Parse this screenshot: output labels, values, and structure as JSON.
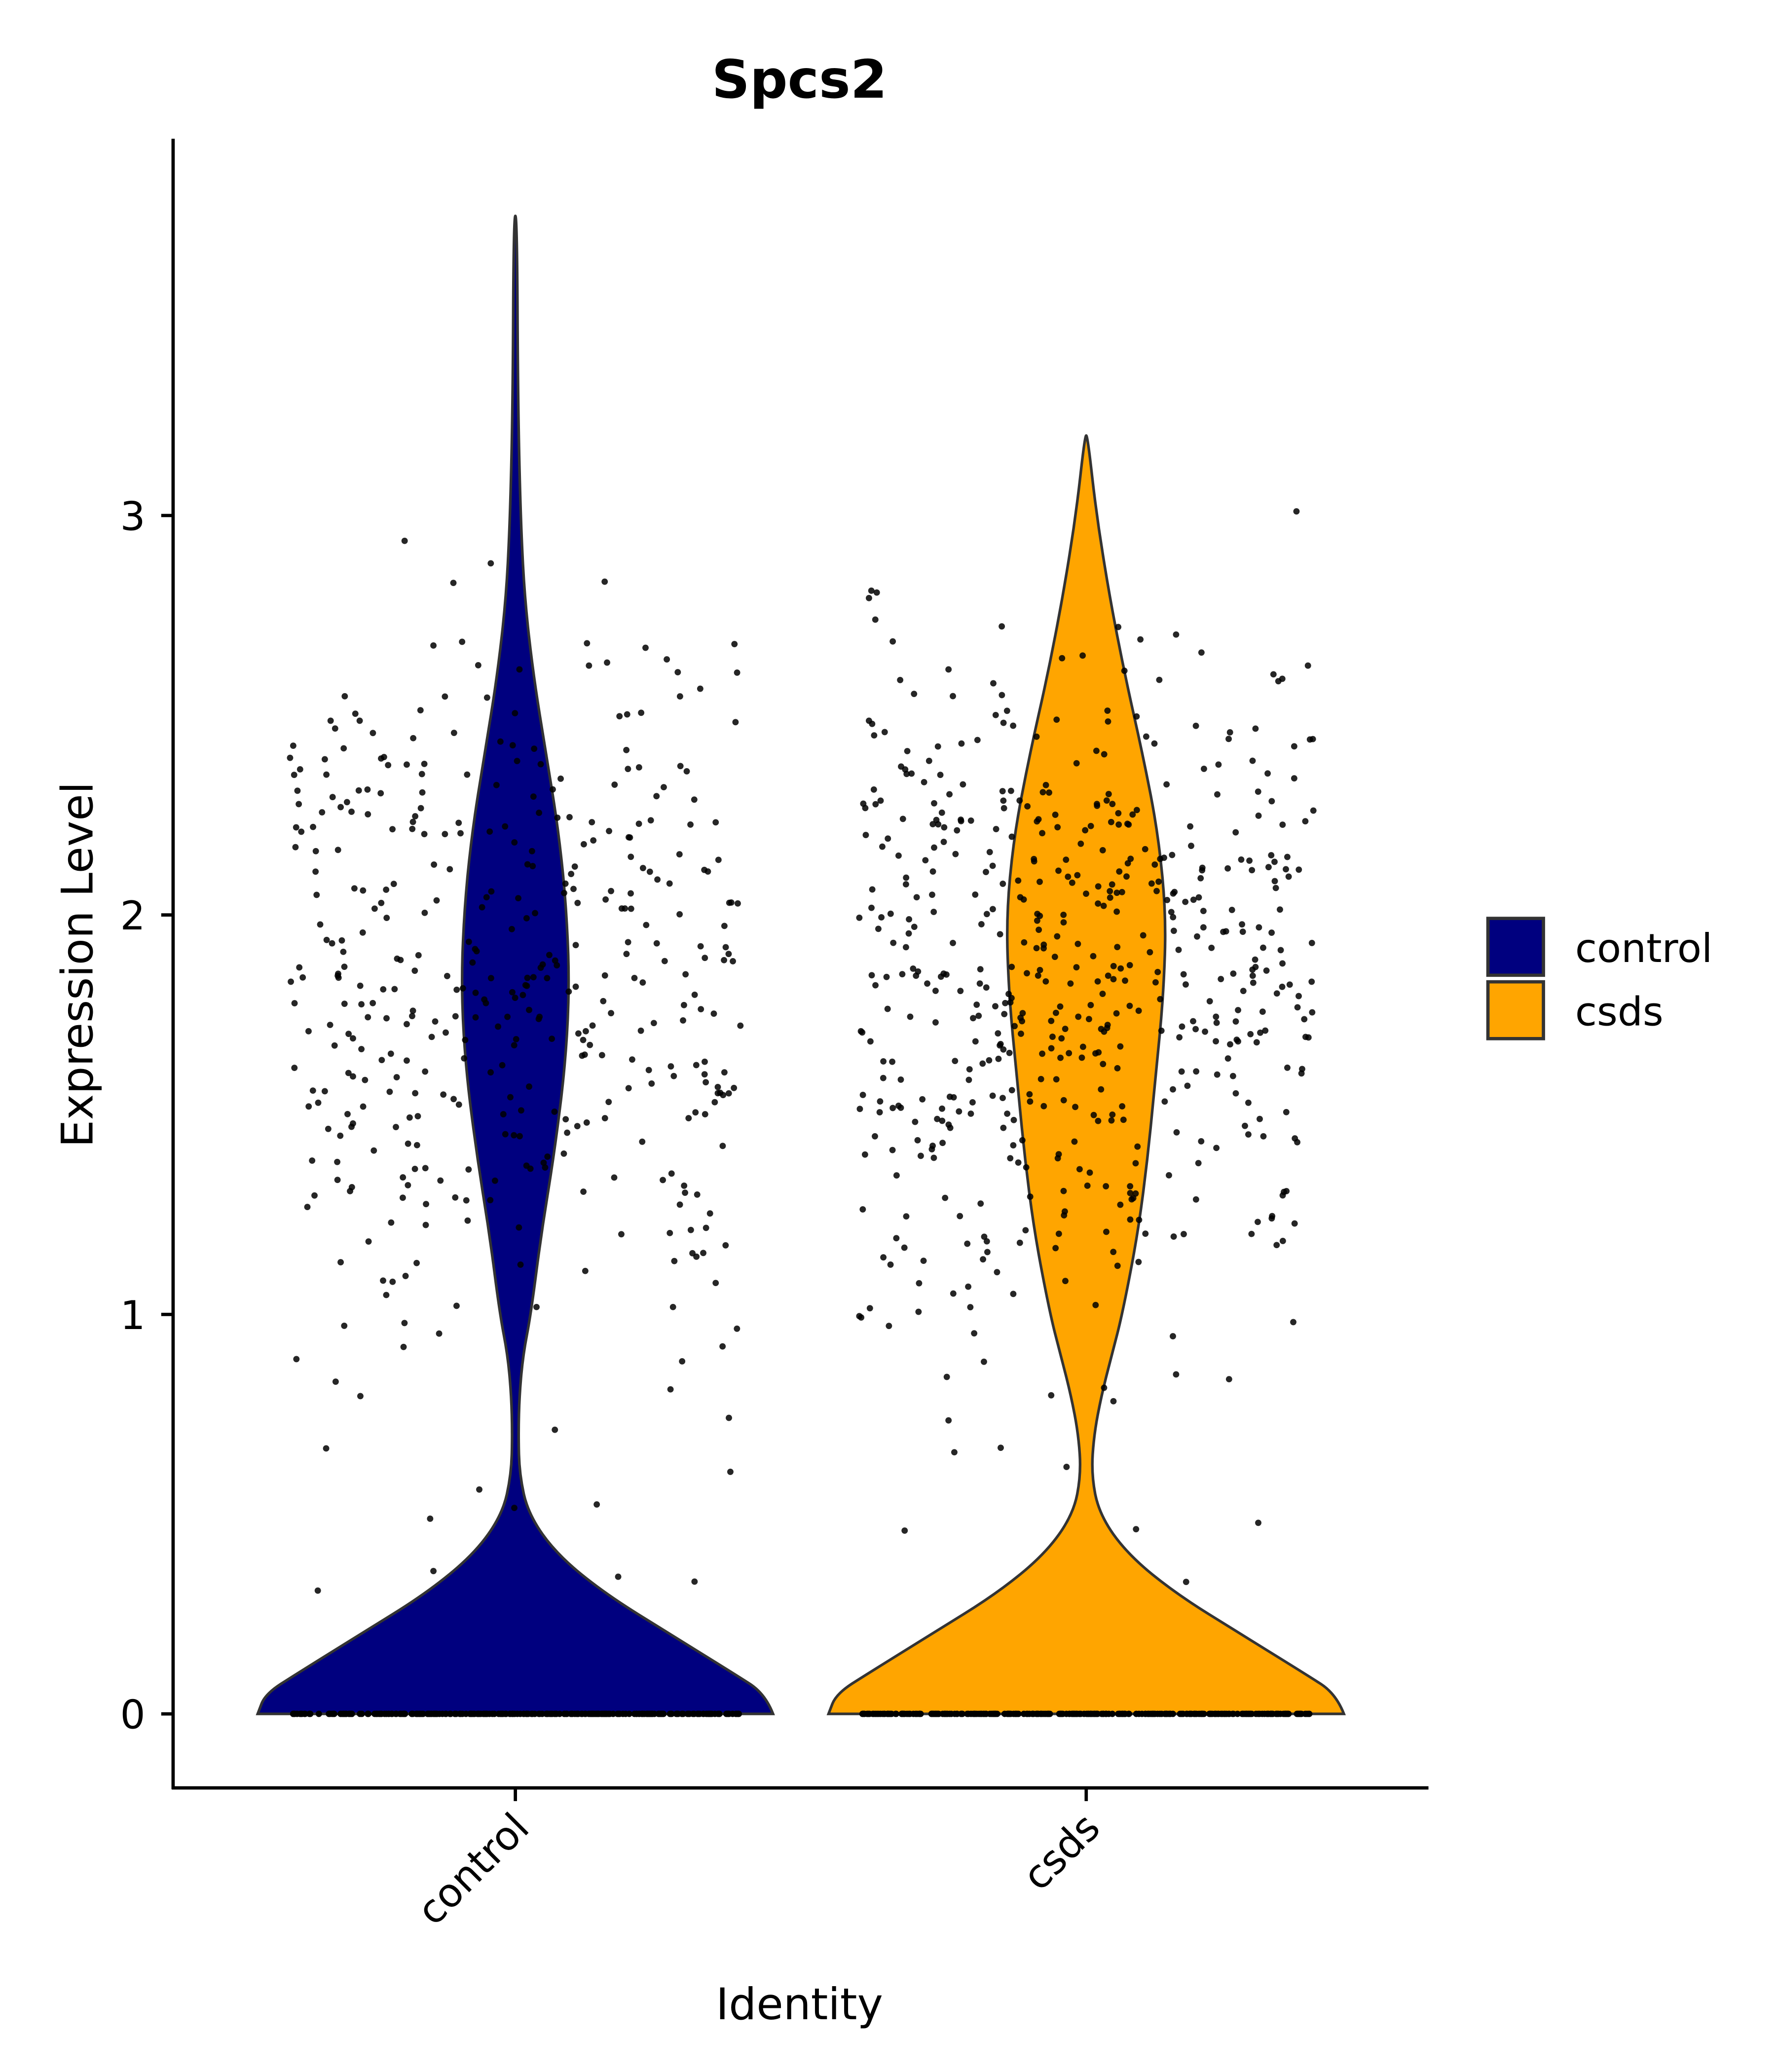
{
  "chart_data": {
    "type": "violin",
    "title": "Spcs2",
    "xlabel": "Identity",
    "ylabel": "Expression Level",
    "ylim": [
      -0.19,
      3.95
    ],
    "yticks": [
      0,
      1,
      2,
      3
    ],
    "ytick_labels": [
      "0",
      "1",
      "2",
      "3"
    ],
    "categories": [
      "control",
      "csds"
    ],
    "legend": {
      "placement": "right",
      "entries": [
        "control",
        "csds"
      ]
    },
    "series": [
      {
        "name": "control",
        "color": "#00007F",
        "max": 3.75,
        "n_zero_points": 300,
        "n_nonzero_points": 420,
        "density_profile": [
          [
            0,
            1
          ],
          [
            0.05,
            0.97
          ],
          [
            0.1,
            0.85
          ],
          [
            0.2,
            0.6
          ],
          [
            0.3,
            0.35
          ],
          [
            0.4,
            0.16
          ],
          [
            0.5,
            0.05
          ],
          [
            0.6,
            0.016
          ],
          [
            0.7,
            0.012
          ],
          [
            0.8,
            0.016
          ],
          [
            0.9,
            0.03
          ],
          [
            1.0,
            0.06
          ],
          [
            1.2,
            0.1
          ],
          [
            1.4,
            0.15
          ],
          [
            1.6,
            0.19
          ],
          [
            1.8,
            0.21
          ],
          [
            2.0,
            0.2
          ],
          [
            2.2,
            0.17
          ],
          [
            2.4,
            0.12
          ],
          [
            2.6,
            0.07
          ],
          [
            2.8,
            0.035
          ],
          [
            3.0,
            0.02
          ],
          [
            3.3,
            0.01
          ],
          [
            3.75,
            0.006
          ]
        ]
      },
      {
        "name": "csds",
        "color": "#FFA500",
        "max": 3.2,
        "n_zero_points": 300,
        "n_nonzero_points": 560,
        "density_profile": [
          [
            0,
            1
          ],
          [
            0.05,
            0.97
          ],
          [
            0.1,
            0.85
          ],
          [
            0.2,
            0.6
          ],
          [
            0.3,
            0.35
          ],
          [
            0.4,
            0.16
          ],
          [
            0.5,
            0.05
          ],
          [
            0.6,
            0.02
          ],
          [
            0.7,
            0.03
          ],
          [
            0.8,
            0.06
          ],
          [
            0.9,
            0.1
          ],
          [
            1.0,
            0.14
          ],
          [
            1.2,
            0.2
          ],
          [
            1.4,
            0.24
          ],
          [
            1.6,
            0.27
          ],
          [
            1.8,
            0.3
          ],
          [
            2.0,
            0.31
          ],
          [
            2.2,
            0.28
          ],
          [
            2.4,
            0.22
          ],
          [
            2.6,
            0.15
          ],
          [
            2.8,
            0.09
          ],
          [
            3.0,
            0.04
          ],
          [
            3.2,
            0.005
          ]
        ]
      }
    ]
  }
}
